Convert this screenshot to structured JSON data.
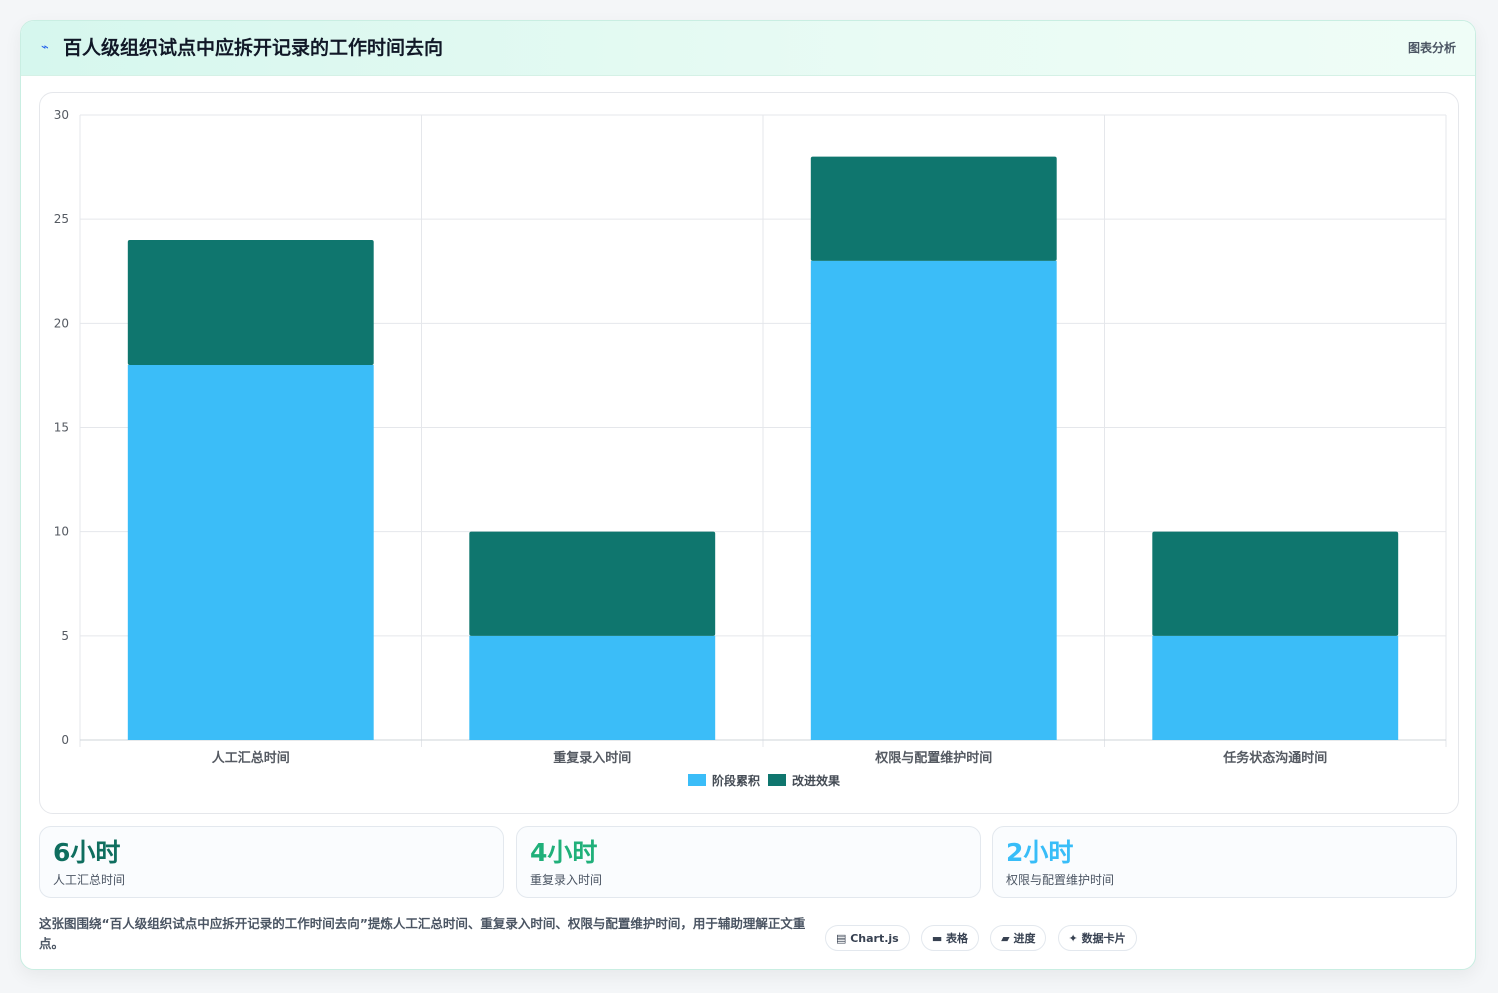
{
  "header": {
    "icon": "chart-line-icon",
    "title": "百人级组织试点中应拆开记录的工作时间去向",
    "action_label": "图表分析"
  },
  "chart_data": {
    "type": "bar",
    "stacked": true,
    "categories": [
      "人工汇总时间",
      "重复录入时间",
      "权限与配置维护时间",
      "任务状态沟通时间"
    ],
    "series": [
      {
        "name": "阶段累积",
        "values": [
          18,
          5,
          23,
          5
        ],
        "color": "#3bbdf8"
      },
      {
        "name": "改进效果",
        "values": [
          6,
          5,
          5,
          5
        ],
        "color": "#0f766e"
      }
    ],
    "ylim": [
      0,
      30
    ],
    "yticks": [
      0,
      5,
      10,
      15,
      20,
      25,
      30
    ],
    "grid": true,
    "legend": "bottom"
  },
  "stats": [
    {
      "value": "6小时",
      "label": "人工汇总时间",
      "color": "#0f6e5f"
    },
    {
      "value": "4小时",
      "label": "重复录入时间",
      "color": "#20b07a"
    },
    {
      "value": "2小时",
      "label": "权限与配置维护时间",
      "color": "#38bdf8"
    }
  ],
  "note": "这张图围绕“百人级组织试点中应拆开记录的工作时间去向”提炼人工汇总时间、重复录入时间、权限与配置维护时间，用于辅助理解正文重点。",
  "tags": [
    {
      "icon": "chart-icon",
      "label": "▤ Chart.js"
    },
    {
      "icon": "table-icon",
      "label": "▬ 表格"
    },
    {
      "icon": "progress-icon",
      "label": "▰ 进度"
    },
    {
      "icon": "card-icon",
      "label": "✦ 数据卡片"
    }
  ]
}
